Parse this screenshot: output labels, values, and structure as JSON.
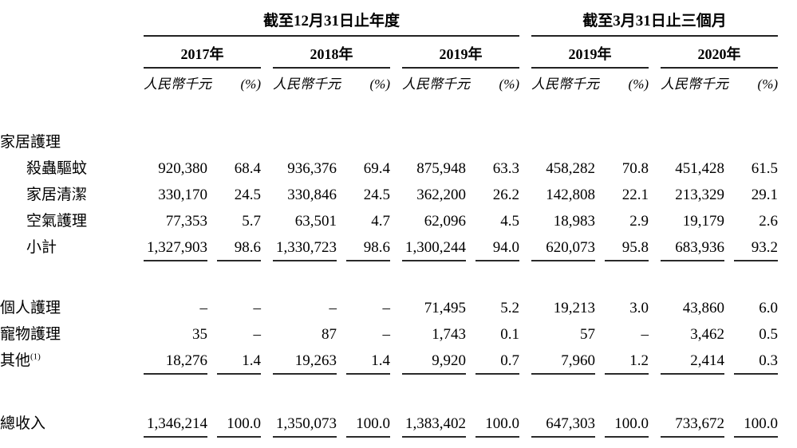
{
  "table": {
    "period_groups": [
      {
        "title": "截至12月31日止年度",
        "years": [
          "2017年",
          "2018年",
          "2019年"
        ]
      },
      {
        "title": "截至3月31日止三個月",
        "years": [
          "2019年",
          "2020年"
        ]
      }
    ],
    "column_headers": {
      "amount": "人民幣千元",
      "percent": "(%)"
    },
    "nil_symbol": "–",
    "rows": [
      {
        "type": "spacer"
      },
      {
        "type": "section",
        "label": "家居護理",
        "bold": true
      },
      {
        "type": "item",
        "label": "殺蟲驅蚊",
        "indent": true,
        "values": [
          "920,380",
          "68.4",
          "936,376",
          "69.4",
          "875,948",
          "63.3",
          "458,282",
          "70.8",
          "451,428",
          "61.5"
        ]
      },
      {
        "type": "item",
        "label": "家居清潔",
        "indent": true,
        "values": [
          "330,170",
          "24.5",
          "330,846",
          "24.5",
          "362,200",
          "26.2",
          "142,808",
          "22.1",
          "213,329",
          "29.1"
        ]
      },
      {
        "type": "item",
        "label": "空氣護理",
        "indent": true,
        "values": [
          "77,353",
          "5.7",
          "63,501",
          "4.7",
          "62,096",
          "4.5",
          "18,983",
          "2.9",
          "19,179",
          "2.6"
        ]
      },
      {
        "type": "subtotal",
        "label": "小計",
        "indent": true,
        "underline": true,
        "values": [
          "1,327,903",
          "98.6",
          "1,330,723",
          "98.6",
          "1,300,244",
          "94.0",
          "620,073",
          "95.8",
          "683,936",
          "93.2"
        ]
      },
      {
        "type": "spacer"
      },
      {
        "type": "item",
        "label": "個人護理",
        "bold": true,
        "values": [
          "–",
          "–",
          "–",
          "–",
          "71,495",
          "5.2",
          "19,213",
          "3.0",
          "43,860",
          "6.0"
        ]
      },
      {
        "type": "item",
        "label": "寵物護理",
        "bold": true,
        "values": [
          "35",
          "–",
          "87",
          "–",
          "1,743",
          "0.1",
          "57",
          "–",
          "3,462",
          "0.5"
        ]
      },
      {
        "type": "subtotal",
        "label": "其他",
        "sup": "(1)",
        "bold": true,
        "underline": true,
        "values": [
          "18,276",
          "1.4",
          "19,263",
          "1.4",
          "9,920",
          "0.7",
          "7,960",
          "1.2",
          "2,414",
          "0.3"
        ]
      },
      {
        "type": "spacer"
      },
      {
        "type": "total",
        "label": "總收入",
        "bold": true,
        "bold_values": true,
        "underline": true,
        "values": [
          "1,346,214",
          "100.0",
          "1,350,073",
          "100.0",
          "1,383,402",
          "100.0",
          "647,303",
          "100.0",
          "733,672",
          "100.0"
        ]
      }
    ]
  }
}
